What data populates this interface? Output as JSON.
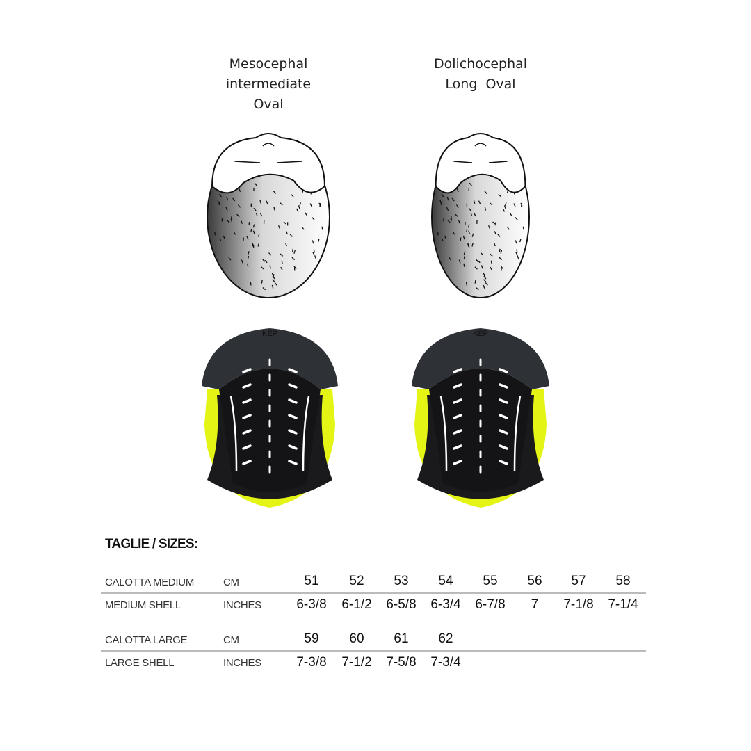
{
  "head_types": [
    {
      "lines": [
        "Mesocephal",
        "intermediate",
        "Oval"
      ]
    },
    {
      "lines": [
        "Dolichocephal",
        "Long  Oval"
      ]
    }
  ],
  "helmet_logo": "KEP",
  "colors": {
    "pad_dark": "#1a1a1c",
    "pad_rim": "#2e3136",
    "accent_yellow": "#e4f516"
  },
  "sizes": {
    "title": "TAGLIE / SIZES:",
    "groups": [
      {
        "cm_label": "CALOTTA MEDIUM",
        "cm_unit": "CM",
        "in_label": "MEDIUM SHELL",
        "in_unit": "INCHES",
        "cm": [
          "51",
          "52",
          "53",
          "54",
          "55",
          "56",
          "57",
          "58"
        ],
        "inches": [
          "6-3/8",
          "6-1/2",
          "6-5/8",
          "6-3/4",
          "6-7/8",
          "7",
          "7-1/8",
          "7-1/4"
        ]
      },
      {
        "cm_label": "CALOTTA LARGE",
        "cm_unit": "CM",
        "in_label": "LARGE SHELL",
        "in_unit": "INCHES",
        "cm": [
          "59",
          "60",
          "61",
          "62"
        ],
        "inches": [
          "7-3/8",
          "7-1/2",
          "7-5/8",
          "7-3/4"
        ]
      }
    ]
  }
}
